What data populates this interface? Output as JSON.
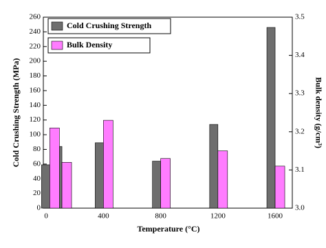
{
  "chart_data": {
    "type": "bar",
    "x_label": "Temperature (°C)",
    "y_label": "Cold Crushing Strength (MPa)",
    "y2_label": "Bulk density (g/cm³)",
    "x": [
      25,
      110,
      400,
      800,
      1200,
      1600
    ],
    "series": [
      {
        "name": "Cold Crushing Strength",
        "color": "#6e6e6e",
        "values": [
          59,
          84,
          89,
          64,
          114,
          246
        ]
      },
      {
        "name": "Bulk Density",
        "color": "#ff7cff",
        "axis": "y2",
        "values": [
          3.21,
          3.12,
          3.23,
          3.13,
          3.15,
          3.11
        ]
      }
    ],
    "xlim": [
      -20,
      1720
    ],
    "xticks": [
      0,
      400,
      800,
      1200,
      1600
    ],
    "ylim": [
      0,
      260
    ],
    "yticks": [
      0,
      20,
      40,
      60,
      80,
      100,
      120,
      140,
      160,
      180,
      200,
      220,
      240,
      260
    ],
    "y2lim": [
      3,
      3.5
    ],
    "y2ticks": [
      {
        "value": 3,
        "label": "3.0"
      },
      3.1,
      3.2,
      3.3,
      3.4,
      3.5
    ]
  }
}
